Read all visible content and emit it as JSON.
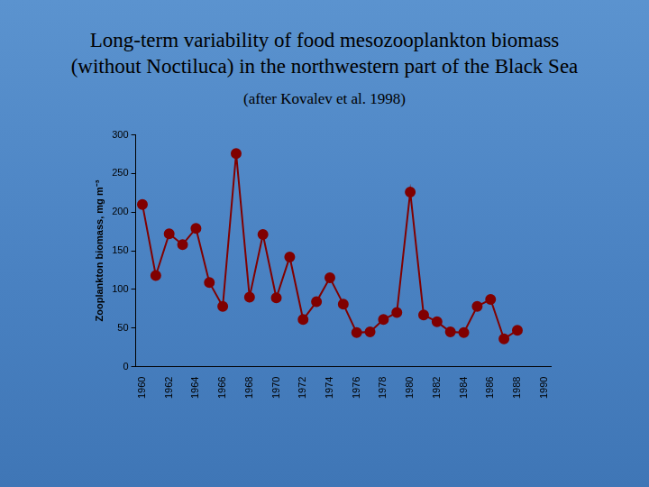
{
  "chart_data": {
    "type": "line",
    "title": "Long-term variability of food mesozooplankton biomass\n(without Noctiluca) in the northwestern part of the Black Sea",
    "subtitle": "(after Kovalev et al. 1998)",
    "y_label": "Zooplankton biomass, mg m⁻³",
    "categories": [
      "1960",
      null,
      "1962",
      null,
      "1964",
      null,
      "1966",
      null,
      "1968",
      null,
      "1970",
      null,
      "1972",
      null,
      "1974",
      null,
      "1976",
      null,
      "1978",
      null,
      "1980",
      null,
      "1982",
      null,
      "1984",
      null,
      "1986",
      null,
      "1988",
      null,
      "1990"
    ],
    "values": [
      210,
      118,
      172,
      158,
      179,
      109,
      78,
      276,
      90,
      171,
      89,
      142,
      61,
      84,
      115,
      81,
      44,
      45,
      61,
      70,
      226,
      67,
      58,
      45,
      44,
      78,
      87,
      36,
      47,
      null,
      null
    ],
    "color": "#800000",
    "marker": "circle",
    "ylim": [
      0,
      300
    ],
    "yticks": [
      0,
      50,
      100,
      150,
      200,
      250,
      300
    ],
    "grid": false
  }
}
